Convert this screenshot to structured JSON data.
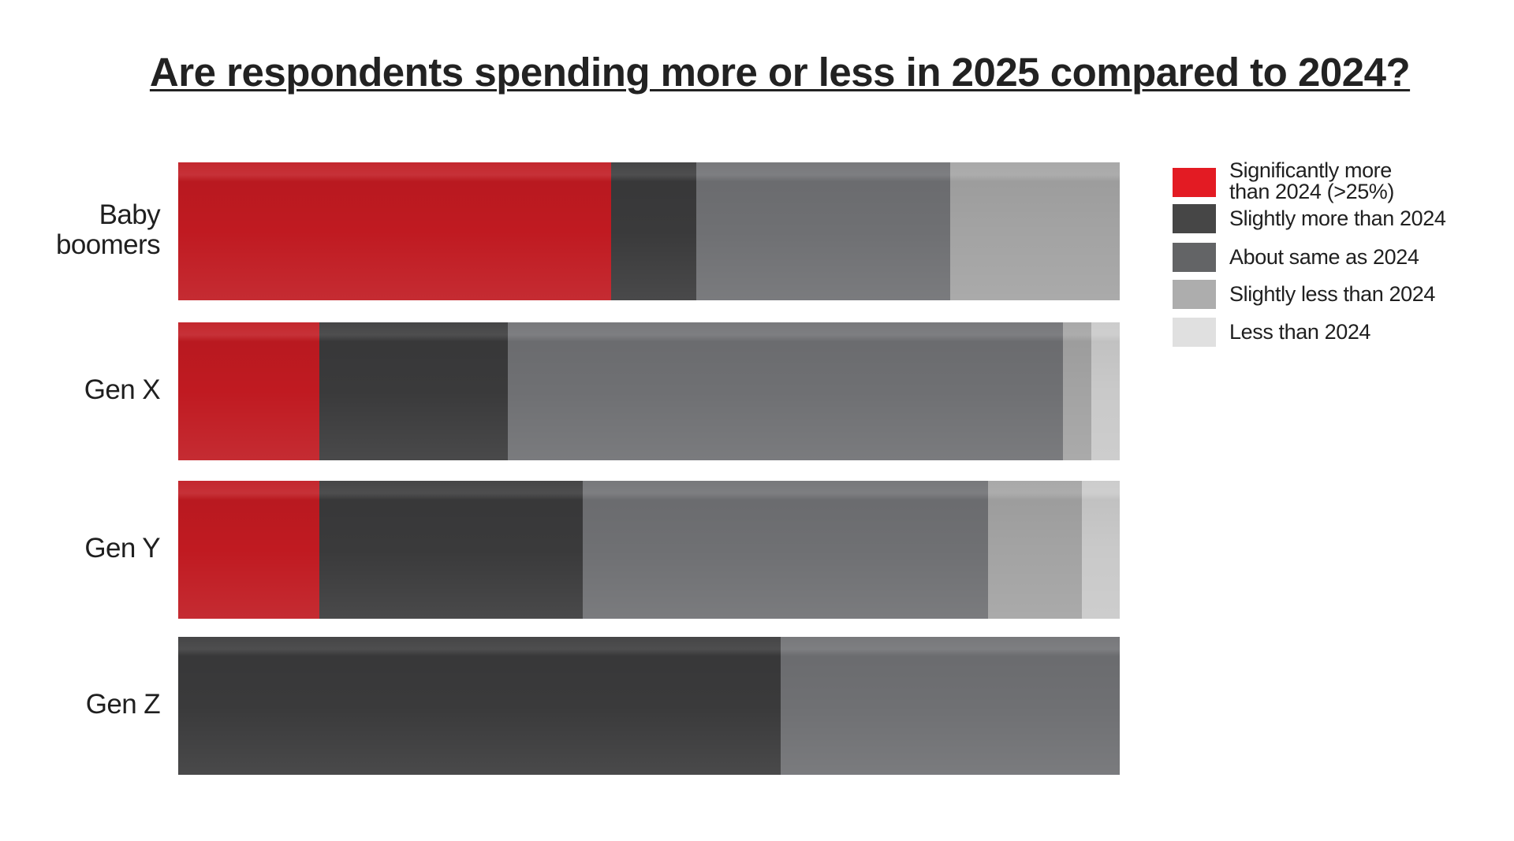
{
  "chart_data": {
    "type": "bar",
    "orientation": "horizontal",
    "stacked": true,
    "normalized_percent": true,
    "title": "Are respondents spending more or less in 2025 compared to 2024?",
    "xlabel": "",
    "ylabel": "",
    "xlim": [
      0,
      100
    ],
    "grid": false,
    "legend_position": "right",
    "categories": [
      "Baby\nboomers",
      "Gen X",
      "Gen Y",
      "Gen Z"
    ],
    "series": [
      {
        "name": "Significantly more\nthan 2024 (>25%)",
        "color": "#c01a21",
        "legend_color": "#e31b23",
        "values": [
          46,
          15,
          15,
          0
        ]
      },
      {
        "name": "Slightly more than 2024",
        "color": "#3a3a3b",
        "legend_color": "#464646",
        "values": [
          9,
          20,
          28,
          64
        ]
      },
      {
        "name": "About same as 2024",
        "color": "#6f7073",
        "legend_color": "#636466",
        "values": [
          27,
          59,
          43,
          36
        ]
      },
      {
        "name": "Slightly less than 2024",
        "color": "#a3a3a3",
        "legend_color": "#adadad",
        "values": [
          18,
          3,
          10,
          0
        ]
      },
      {
        "name": "Less than 2024",
        "color": "#c9c9c9",
        "legend_color": "#e0e0e0",
        "values": [
          0,
          3,
          4,
          0
        ]
      }
    ]
  }
}
